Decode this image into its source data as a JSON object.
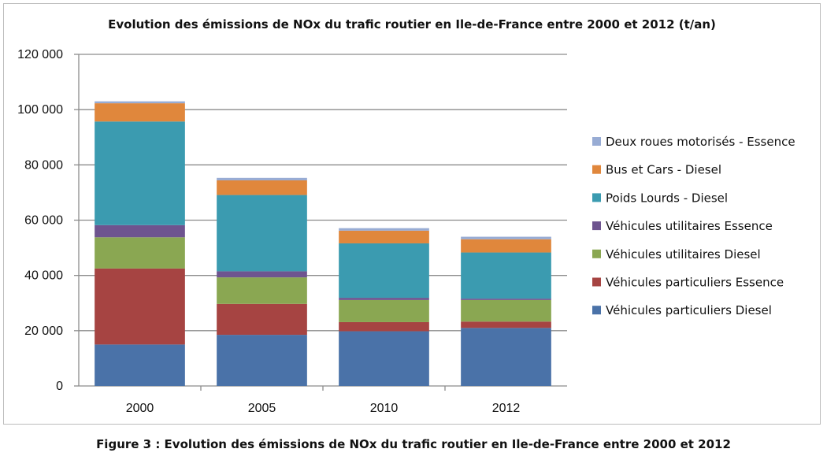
{
  "caption": "Figure 3 : Evolution des émissions de NOx du trafic routier en Ile-de-France entre 2000 et 2012",
  "chart_data": {
    "type": "bar",
    "stacked": true,
    "title": "Evolution des émissions de NOx du trafic routier en Ile-de-France entre 2000 et 2012 (t/an)",
    "xlabel": "",
    "ylabel": "",
    "categories": [
      "2000",
      "2005",
      "2010",
      "2012"
    ],
    "ylim": [
      0,
      120000
    ],
    "yticks": [
      0,
      20000,
      40000,
      60000,
      80000,
      100000,
      120000
    ],
    "ytick_labels": [
      "0",
      "20 000",
      "40 000",
      "60 000",
      "80 000",
      "100 000",
      "120 000"
    ],
    "grid": true,
    "legend_position": "right",
    "series": [
      {
        "name": "Véhicules particuliers Diesel",
        "color": "#4a72a8",
        "values": [
          15000,
          18500,
          19800,
          21000
        ]
      },
      {
        "name": "Véhicules particuliers Essence",
        "color": "#a64442",
        "values": [
          27500,
          11200,
          3300,
          2300
        ]
      },
      {
        "name": "Véhicules utilitaires Diesel",
        "color": "#8aa752",
        "values": [
          11300,
          9600,
          8000,
          7800
        ]
      },
      {
        "name": "Véhicules utilitaires Essence",
        "color": "#6e548f",
        "values": [
          4400,
          2200,
          800,
          500
        ]
      },
      {
        "name": "Poids Lourds - Diesel",
        "color": "#3b9bb0",
        "values": [
          37500,
          27600,
          19700,
          16700
        ]
      },
      {
        "name": "Bus et Cars - Diesel",
        "color": "#e0873c",
        "values": [
          6600,
          5300,
          4600,
          4800
        ]
      },
      {
        "name": "Deux roues motorisés - Essence",
        "color": "#98acd4",
        "values": [
          700,
          900,
          900,
          900
        ]
      }
    ]
  }
}
